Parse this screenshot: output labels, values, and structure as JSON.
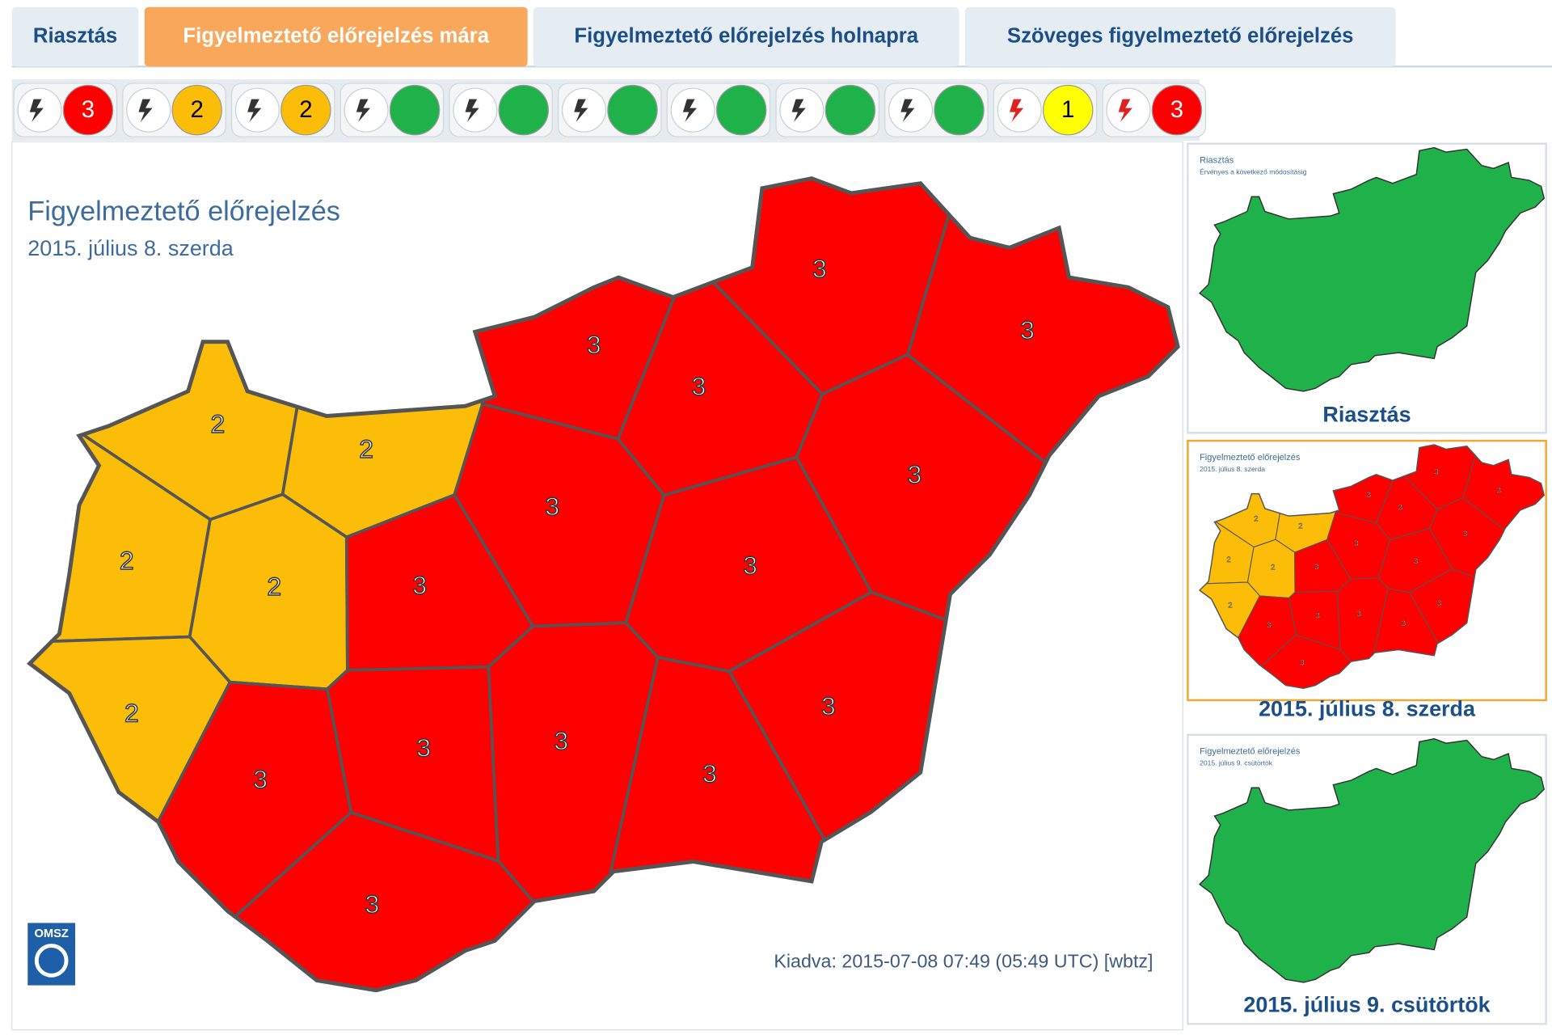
{
  "tabs": [
    {
      "label": "Riasztás"
    },
    {
      "label": "Figyelmeztető előrejelzés mára"
    },
    {
      "label": "Figyelmeztető előrejelzés holnapra"
    },
    {
      "label": "Szöveges figyelmeztető előrejelzés"
    }
  ],
  "active_tab": 1,
  "level_colors": [
    "#1fb24a",
    "#ffff00",
    "#fbbd08",
    "#ff0000"
  ],
  "hazards": [
    {
      "level": 3
    },
    {
      "level": 2
    },
    {
      "level": 2
    },
    {
      "level": null
    },
    {
      "level": null
    },
    {
      "level": null
    },
    {
      "level": null
    },
    {
      "level": null
    },
    {
      "level": null
    },
    {
      "level": 1
    },
    {
      "level": 3
    }
  ],
  "map": {
    "title": "Figyelmeztető előrejelzés",
    "date": "2015. július 8. szerda",
    "logo": "OMSZ",
    "issued": "Kiadva: 2015-07-08 07:49 (05:49 UTC) [wbtz]",
    "regions": [
      2,
      2,
      2,
      2,
      2,
      3,
      3,
      3,
      3,
      3,
      3,
      3,
      3,
      3,
      3,
      3,
      3,
      3,
      3
    ]
  },
  "thumbnails": [
    {
      "caption": "Riasztás",
      "title": "Riasztás",
      "subtitle": "Érvényes a következő módosításig"
    },
    {
      "caption": "2015. július 8. szerda",
      "title": "Figyelmeztető előrejelzés",
      "subtitle": "2015. július 8. szerda"
    },
    {
      "caption": "2015. július 9. csütörtök",
      "title": "Figyelmeztető előrejelzés",
      "subtitle": "2015. július 9. csütörtök"
    }
  ]
}
